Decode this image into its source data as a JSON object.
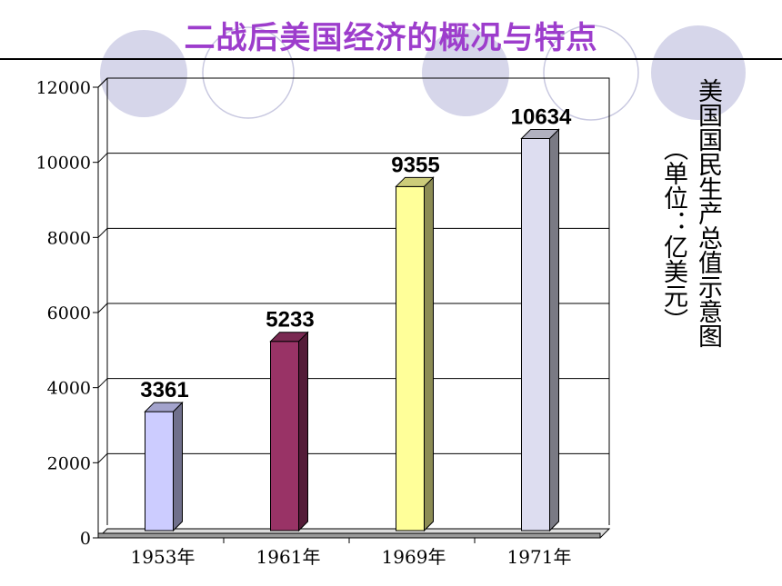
{
  "slide": {
    "title": "二战后美国经济的概况与特点"
  },
  "chart_data": {
    "type": "bar",
    "title": "美国国民生产总值示意图",
    "unit_label": "（单位：亿美元）",
    "categories": [
      "1953年",
      "1961年",
      "1969年",
      "1971年"
    ],
    "values": [
      3361,
      5233,
      9355,
      10634
    ],
    "data_labels": [
      "3361",
      "5233",
      "9355",
      "10634"
    ],
    "bar_colors": [
      "#ccccff",
      "#993366",
      "#ffff99",
      "#ddddf0"
    ],
    "ylim": [
      0,
      12000
    ],
    "yticks": [
      0,
      2000,
      4000,
      6000,
      8000,
      10000,
      12000
    ],
    "ytick_labels": [
      "0",
      "2000",
      "4000",
      "6000",
      "8000",
      "10000",
      "12000"
    ],
    "grid": true,
    "legend": "none",
    "style": "3d-column"
  },
  "colors": {
    "title": "#9d3dcc",
    "decor_circle_fill": "#d6d6ea",
    "decor_circle_line": "#c8c8e0"
  }
}
